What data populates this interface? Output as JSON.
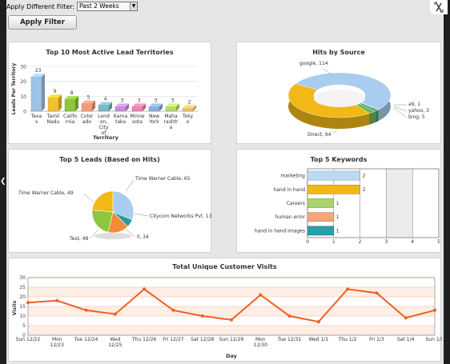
{
  "filter": {
    "label": "Apply Different Filter:",
    "selected": "Past 2 Weeks",
    "apply_label": "Apply Filter"
  },
  "icons": {
    "close": "expand-close-icon",
    "nav": "left-arrow-icon"
  },
  "charts": {
    "territories": {
      "chart_data": {
        "type": "bar",
        "title": "Top 10 Most Active Lead Territories",
        "xlabel": "Territory",
        "ylabel": "Leads Per Territory",
        "ylim": [
          0,
          30
        ],
        "yticks": [
          "0",
          "10",
          "20",
          "30"
        ],
        "categories": [
          "Texas",
          "Tamil Nadu",
          "California",
          "Colorado",
          "London, City of",
          "Karnataka",
          "Minnesota",
          "New York",
          "Maharashtra",
          "Tokyo"
        ],
        "category_labels": [
          [
            "Texa",
            "s"
          ],
          [
            "Tamil",
            "Nadu"
          ],
          [
            "Califo",
            "rnia"
          ],
          [
            "Color",
            "ado"
          ],
          [
            "Lond",
            "on,",
            "City",
            "of"
          ],
          [
            "Karna",
            "taka"
          ],
          [
            "Minne",
            "sota"
          ],
          [
            "New",
            "York"
          ],
          [
            "Maha",
            "rashtr",
            "a"
          ],
          [
            "Toky",
            "o"
          ]
        ],
        "values": [
          23,
          9,
          8,
          5,
          4,
          3,
          3,
          3,
          3,
          2
        ],
        "value_labels": [
          "23",
          "9",
          "8",
          "5",
          "4",
          "3",
          "3",
          "3",
          "3",
          "2"
        ],
        "colors": [
          "#9ec3e6",
          "#f2c12e",
          "#8dc63f",
          "#f49b7a",
          "#7fb8c8",
          "#c58fd8",
          "#ee82b0",
          "#8ab0d8",
          "#b8d96a",
          "#f0c070"
        ]
      }
    },
    "sources": {
      "chart_data": {
        "type": "pie",
        "title": "Hits by Source",
        "slices": [
          {
            "name": "google",
            "value": 114,
            "label": "google, 114",
            "color": "#a8cdee"
          },
          {
            "name": "a9",
            "value": 1,
            "label": "a9, 1",
            "color": "#7ab648"
          },
          {
            "name": "yahoo",
            "value": 3,
            "label": "yahoo, 3",
            "color": "#3aa0a0"
          },
          {
            "name": "bing",
            "value": 5,
            "label": "bing, 5",
            "color": "#7ab648"
          },
          {
            "name": "Direct",
            "value": 94,
            "label": "Direct, 94",
            "color": "#f2b817"
          }
        ]
      }
    },
    "leads": {
      "chart_data": {
        "type": "pie",
        "title": "Top 5 Leads (Based on Hits)",
        "slices": [
          {
            "name": "Time Warner Cable",
            "value": 65,
            "label": "Time Warner Cable, 65",
            "color": "#a8cdee"
          },
          {
            "name": "Citycom Networks Pvt.",
            "value": 13,
            "label": "Citycom Networks Pvt. 13",
            "color": "#27999c"
          },
          {
            "name": "ll",
            "value": 34,
            "label": "ll, 34",
            "color": "#f58a3a"
          },
          {
            "name": "Test",
            "value": 48,
            "label": "Test, 48",
            "color": "#8dc63f"
          },
          {
            "name": "Time Warner Cable",
            "value": 49,
            "label": "Time Warner Cable, 49",
            "color": "#f2b817"
          }
        ]
      }
    },
    "keywords": {
      "chart_data": {
        "type": "bar",
        "orientation": "horizontal",
        "title": "Top 5 Keywords",
        "categories": [
          "marketing",
          "hand in hand",
          "Careers",
          "human error",
          "hand in hand images"
        ],
        "values": [
          2,
          2,
          1,
          1,
          1
        ],
        "value_labels": [
          "2",
          "2",
          "1",
          "1",
          "1"
        ],
        "xlim": [
          0,
          5
        ],
        "xticks": [
          "0",
          "1",
          "2",
          "3",
          "4",
          "5"
        ],
        "colors": [
          "#bcd9f2",
          "#f2b817",
          "#a8d46a",
          "#f5a57a",
          "#2aa0a8"
        ]
      }
    },
    "visits": {
      "chart_data": {
        "type": "line",
        "title": "Total Unique Customer Visits",
        "xlabel": "Day",
        "ylabel": "Visits",
        "ylim": [
          0,
          30
        ],
        "yticks": [
          "0",
          "5",
          "10",
          "15",
          "20",
          "25",
          "30"
        ],
        "x_labels": [
          [
            "Sun 12/22"
          ],
          [
            "Mon",
            "12/23"
          ],
          [
            "Tue 12/24"
          ],
          [
            "Wed",
            "12/25"
          ],
          [
            "Thu 12/26"
          ],
          [
            "Fri 12/27"
          ],
          [
            "Sat 12/28"
          ],
          [
            "Sun 12/29"
          ],
          [
            "Mon",
            "12/30"
          ],
          [
            "Tue 12/31"
          ],
          [
            "Wed 1/1"
          ],
          [
            "Thu 1/2"
          ],
          [
            "Fri 1/3"
          ],
          [
            "Sat 1/4"
          ],
          [
            "Sun 1/5"
          ]
        ],
        "series": [
          {
            "values": [
              17,
              18,
              13,
              11,
              24,
              13,
              10,
              8,
              21,
              10,
              7,
              24,
              22,
              9,
              13
            ],
            "color": "#f06020"
          }
        ]
      }
    }
  }
}
